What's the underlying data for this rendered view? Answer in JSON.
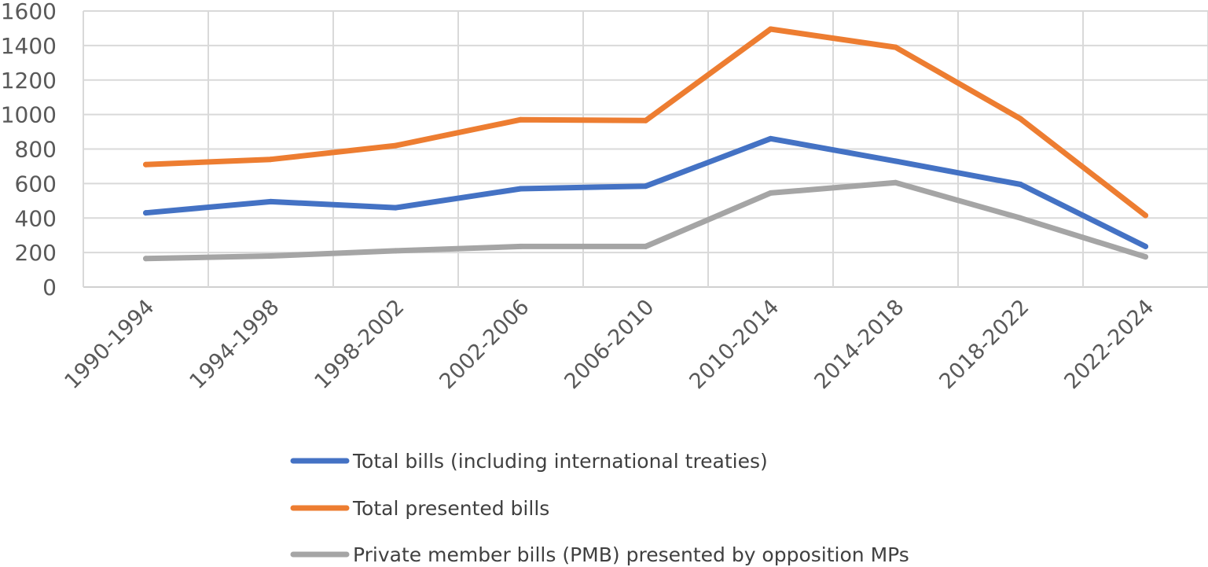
{
  "chart_data": {
    "type": "line",
    "title": "",
    "xlabel": "",
    "ylabel": "",
    "ylim": [
      0,
      1600
    ],
    "yticks": [
      0,
      200,
      400,
      600,
      800,
      1000,
      1200,
      1400,
      1600
    ],
    "grid": true,
    "legend_position": "bottom",
    "categories": [
      "1990-1994",
      "1994-1998",
      "1998-2002",
      "2002-2006",
      "2006-2010",
      "2010-2014",
      "2014-2018",
      "2018-2022",
      "2022-2024"
    ],
    "series": [
      {
        "name": "Total bills (including international treaties)",
        "color": "#4472C4",
        "values": [
          430,
          495,
          460,
          570,
          585,
          860,
          730,
          595,
          235
        ]
      },
      {
        "name": "Total presented bills",
        "color": "#ED7D31",
        "values": [
          710,
          740,
          820,
          970,
          965,
          1495,
          1390,
          975,
          415
        ]
      },
      {
        "name": "Private member bills (PMB) presented by opposition MPs",
        "color": "#A5A5A5",
        "values": [
          165,
          180,
          210,
          235,
          235,
          545,
          605,
          400,
          175
        ]
      }
    ]
  }
}
